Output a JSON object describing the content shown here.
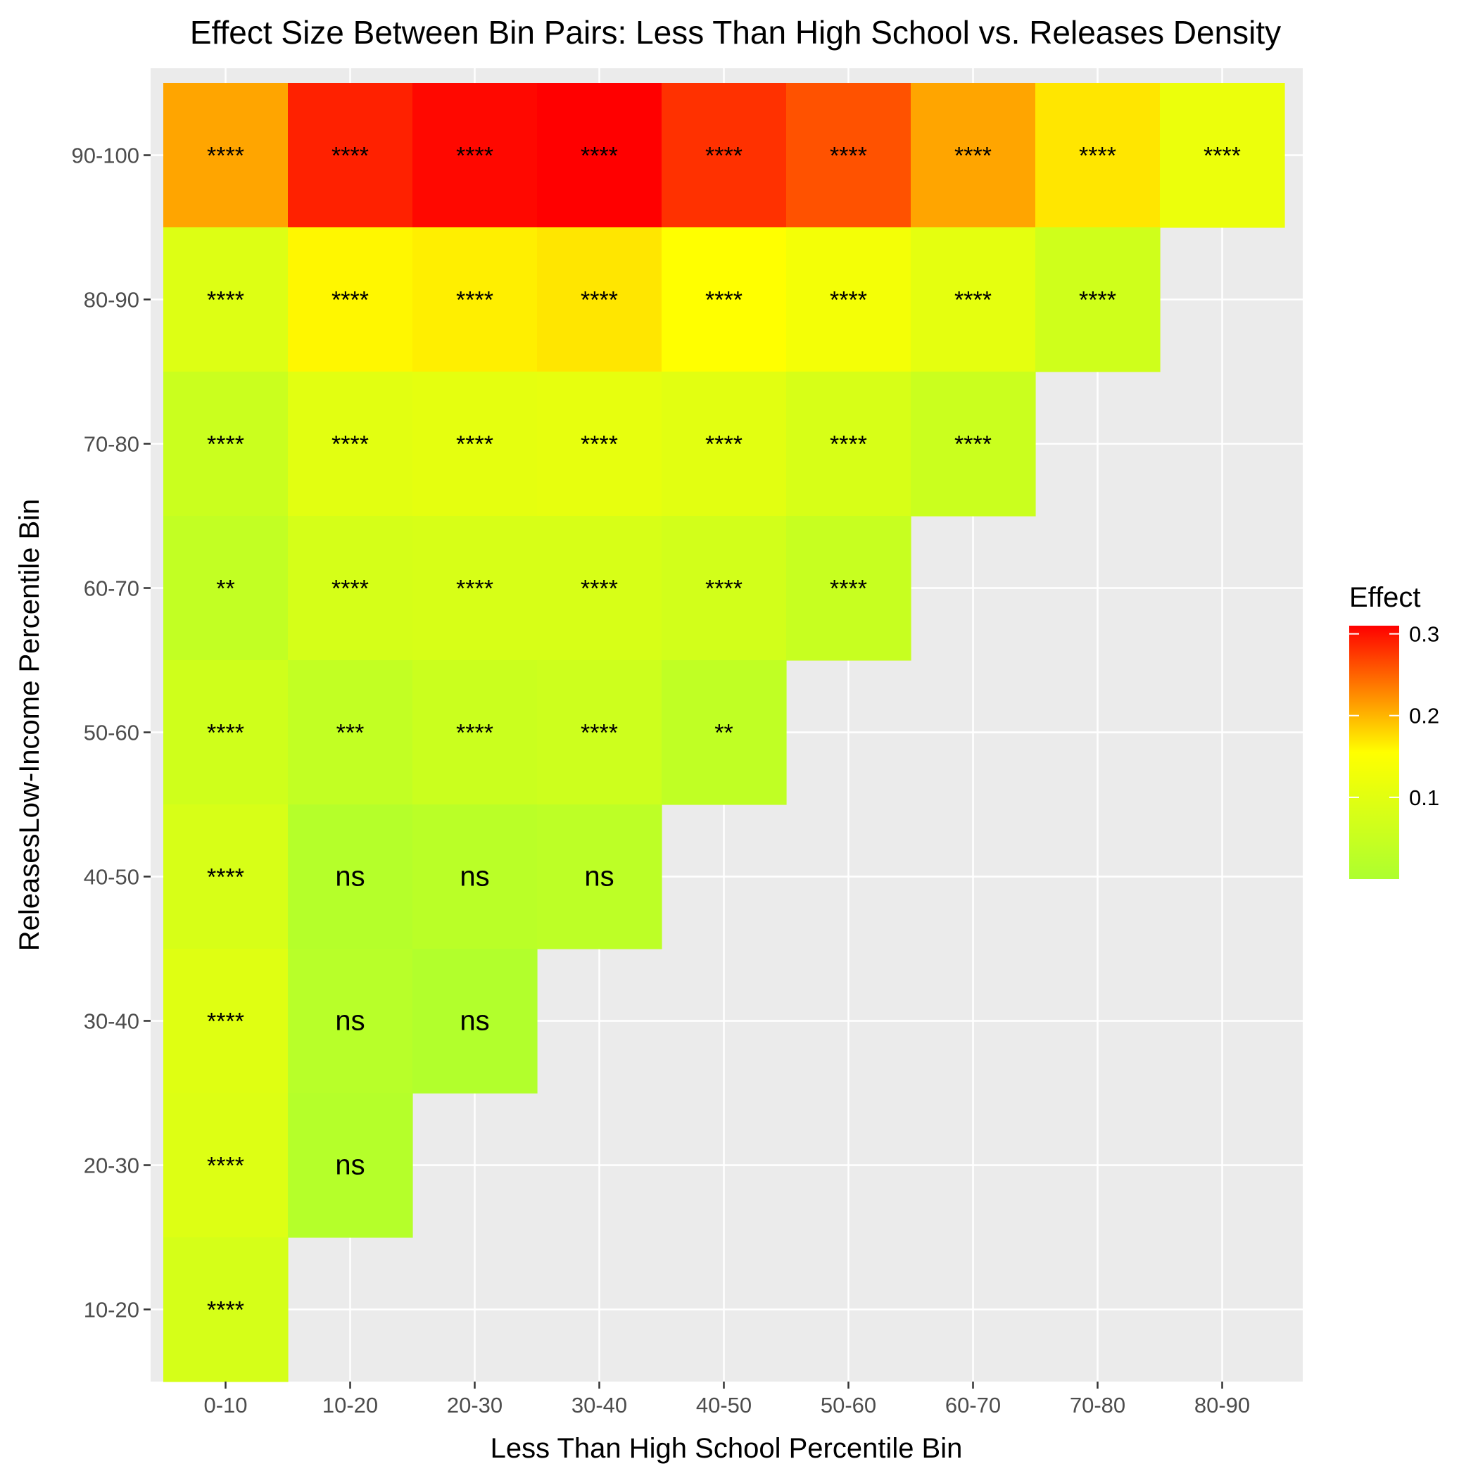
{
  "chart_data": {
    "type": "heatmap",
    "title": "Effect Size Between Bin Pairs: Less Than High School vs. Releases Density",
    "xlabel": "Less Than High School Percentile Bin",
    "ylabel": "ReleasesLow-Income Percentile Bin",
    "x_categories": [
      "0-10",
      "10-20",
      "20-30",
      "30-40",
      "40-50",
      "50-60",
      "60-70",
      "70-80",
      "80-90"
    ],
    "y_categories": [
      "10-20",
      "20-30",
      "30-40",
      "40-50",
      "50-60",
      "60-70",
      "70-80",
      "80-90",
      "90-100"
    ],
    "legend": {
      "title": "Effect",
      "placement": "right",
      "min": 0.0,
      "max": 0.31,
      "breaks": [
        0.1,
        0.2,
        0.3
      ],
      "break_labels": [
        "0.1",
        "0.2",
        "0.3"
      ],
      "colors": [
        "#adff2f",
        "#ffff00",
        "#ff0000"
      ]
    },
    "cells": [
      {
        "x": "0-10",
        "y": "90-100",
        "value": 0.21,
        "label": "****"
      },
      {
        "x": "10-20",
        "y": "90-100",
        "value": 0.29,
        "label": "****"
      },
      {
        "x": "20-30",
        "y": "90-100",
        "value": 0.305,
        "label": "****"
      },
      {
        "x": "30-40",
        "y": "90-100",
        "value": 0.31,
        "label": "****"
      },
      {
        "x": "40-50",
        "y": "90-100",
        "value": 0.28,
        "label": "****"
      },
      {
        "x": "50-60",
        "y": "90-100",
        "value": 0.26,
        "label": "****"
      },
      {
        "x": "60-70",
        "y": "90-100",
        "value": 0.21,
        "label": "****"
      },
      {
        "x": "70-80",
        "y": "90-100",
        "value": 0.17,
        "label": "****"
      },
      {
        "x": "80-90",
        "y": "90-100",
        "value": 0.12,
        "label": "****"
      },
      {
        "x": "0-10",
        "y": "80-90",
        "value": 0.09,
        "label": "****"
      },
      {
        "x": "10-20",
        "y": "80-90",
        "value": 0.16,
        "label": "****"
      },
      {
        "x": "20-30",
        "y": "80-90",
        "value": 0.165,
        "label": "****"
      },
      {
        "x": "30-40",
        "y": "80-90",
        "value": 0.17,
        "label": "****"
      },
      {
        "x": "40-50",
        "y": "80-90",
        "value": 0.155,
        "label": "****"
      },
      {
        "x": "50-60",
        "y": "80-90",
        "value": 0.135,
        "label": "****"
      },
      {
        "x": "60-70",
        "y": "80-90",
        "value": 0.105,
        "label": "****"
      },
      {
        "x": "70-80",
        "y": "80-90",
        "value": 0.065,
        "label": "****"
      },
      {
        "x": "0-10",
        "y": "70-80",
        "value": 0.055,
        "label": "****"
      },
      {
        "x": "10-20",
        "y": "70-80",
        "value": 0.1,
        "label": "****"
      },
      {
        "x": "20-30",
        "y": "70-80",
        "value": 0.105,
        "label": "****"
      },
      {
        "x": "30-40",
        "y": "70-80",
        "value": 0.11,
        "label": "****"
      },
      {
        "x": "40-50",
        "y": "70-80",
        "value": 0.1,
        "label": "****"
      },
      {
        "x": "50-60",
        "y": "70-80",
        "value": 0.08,
        "label": "****"
      },
      {
        "x": "60-70",
        "y": "70-80",
        "value": 0.055,
        "label": "****"
      },
      {
        "x": "0-10",
        "y": "60-70",
        "value": 0.04,
        "label": "**"
      },
      {
        "x": "10-20",
        "y": "60-70",
        "value": 0.075,
        "label": "****"
      },
      {
        "x": "20-30",
        "y": "60-70",
        "value": 0.08,
        "label": "****"
      },
      {
        "x": "30-40",
        "y": "60-70",
        "value": 0.08,
        "label": "****"
      },
      {
        "x": "40-50",
        "y": "60-70",
        "value": 0.07,
        "label": "****"
      },
      {
        "x": "50-60",
        "y": "60-70",
        "value": 0.05,
        "label": "****"
      },
      {
        "x": "0-10",
        "y": "50-60",
        "value": 0.065,
        "label": "****"
      },
      {
        "x": "10-20",
        "y": "50-60",
        "value": 0.04,
        "label": "***"
      },
      {
        "x": "20-30",
        "y": "50-60",
        "value": 0.055,
        "label": "****"
      },
      {
        "x": "30-40",
        "y": "50-60",
        "value": 0.06,
        "label": "****"
      },
      {
        "x": "40-50",
        "y": "50-60",
        "value": 0.035,
        "label": "**"
      },
      {
        "x": "0-10",
        "y": "40-50",
        "value": 0.08,
        "label": "****"
      },
      {
        "x": "10-20",
        "y": "40-50",
        "value": 0.015,
        "label": "ns"
      },
      {
        "x": "20-30",
        "y": "40-50",
        "value": 0.025,
        "label": "ns"
      },
      {
        "x": "30-40",
        "y": "40-50",
        "value": 0.03,
        "label": "ns"
      },
      {
        "x": "0-10",
        "y": "30-40",
        "value": 0.095,
        "label": "****"
      },
      {
        "x": "10-20",
        "y": "30-40",
        "value": 0.02,
        "label": "ns"
      },
      {
        "x": "20-30",
        "y": "30-40",
        "value": 0.01,
        "label": "ns"
      },
      {
        "x": "0-10",
        "y": "20-30",
        "value": 0.09,
        "label": "****"
      },
      {
        "x": "10-20",
        "y": "20-30",
        "value": 0.015,
        "label": "ns"
      },
      {
        "x": "0-10",
        "y": "10-20",
        "value": 0.075,
        "label": "****"
      }
    ]
  }
}
